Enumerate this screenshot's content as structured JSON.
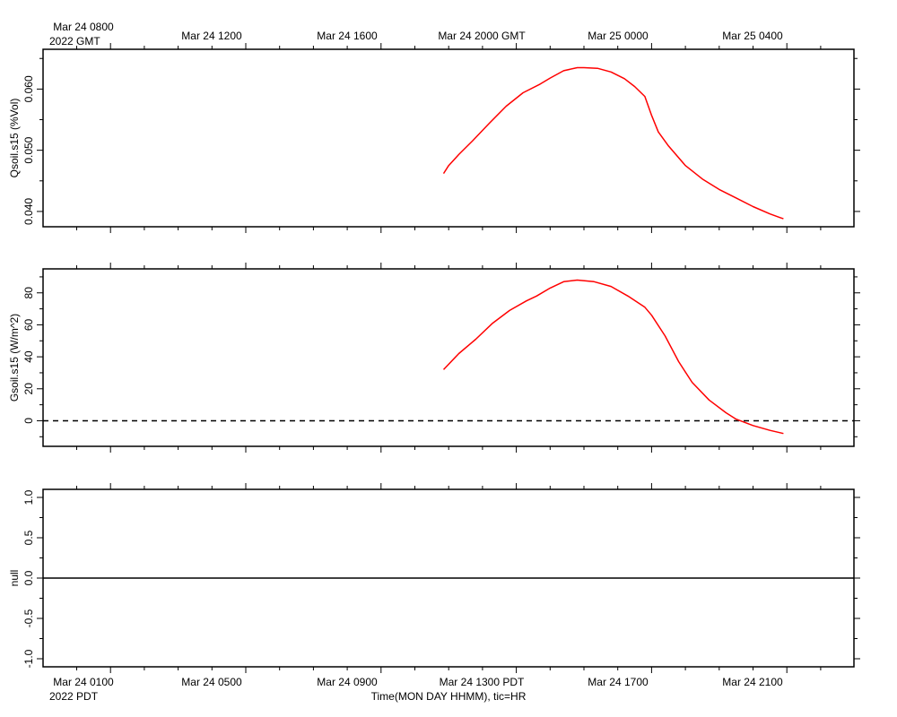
{
  "top_axis": {
    "first_label": "Mar 24 0800",
    "year_label": "2022 GMT",
    "labels": [
      "Mar 24 1200",
      "Mar 24 1600",
      "Mar 24 2000 GMT",
      "Mar 25 0000",
      "Mar 25 0400"
    ]
  },
  "bottom_axis": {
    "labels": [
      "Mar 24 0100",
      "Mar 24 0500",
      "Mar 24 0900",
      "Mar 24 1300 PDT",
      "Mar 24 1700",
      "Mar 24 2100"
    ],
    "year_label": "2022 PDT",
    "title": "Time(MON DAY HHMM), tic=HR"
  },
  "chart_data": [
    {
      "type": "line",
      "ylabel": "Qsoil.s15 (%Vol)",
      "ylim": [
        0.0375,
        0.0665
      ],
      "yticks": [
        0.04,
        0.05,
        0.06
      ],
      "ytick_labels": [
        "0.040",
        "0.050",
        "0.060"
      ],
      "x_unit": "hours after Mar 24 0000 PDT",
      "xlim": [
        0.0,
        24.0
      ],
      "series": [
        {
          "color": "#ff0000",
          "x": [
            10.85,
            11.0,
            11.3,
            11.7,
            12.2,
            12.7,
            13.2,
            13.7,
            14.0,
            14.4,
            14.8,
            15.0,
            15.4,
            15.8,
            16.2,
            16.5,
            16.8,
            17.0,
            17.2,
            17.5,
            18.0,
            18.5,
            19.0,
            19.5,
            20.0,
            20.5,
            20.8,
            20.9
          ],
          "y": [
            0.0462,
            0.0475,
            0.0493,
            0.0515,
            0.0544,
            0.0572,
            0.0594,
            0.0608,
            0.0618,
            0.063,
            0.0635,
            0.0635,
            0.0634,
            0.0628,
            0.0617,
            0.0604,
            0.0588,
            0.0557,
            0.053,
            0.0507,
            0.0475,
            0.0453,
            0.0436,
            0.0422,
            0.0408,
            0.0396,
            0.039,
            0.0388
          ]
        }
      ]
    },
    {
      "type": "line",
      "ylabel": "Gsoil.s15 (W/m^2)",
      "ylim": [
        -16,
        95
      ],
      "yticks": [
        0,
        20,
        40,
        60,
        80
      ],
      "ytick_labels": [
        "0",
        "20",
        "40",
        "60",
        "80"
      ],
      "x_unit": "hours after Mar 24 0000 PDT",
      "xlim": [
        0.0,
        24.0
      ],
      "series": [
        {
          "color": "#ff0000",
          "x": [
            10.85,
            11.3,
            11.8,
            12.3,
            12.8,
            13.3,
            13.6,
            14.0,
            14.4,
            14.8,
            15.3,
            15.8,
            16.3,
            16.8,
            17.0,
            17.4,
            17.8,
            18.2,
            18.7,
            19.2,
            19.5,
            20.0,
            20.5,
            20.9
          ],
          "y": [
            32,
            42,
            51,
            61,
            69,
            75,
            78,
            83,
            87,
            88,
            87,
            84,
            78,
            71,
            66,
            53,
            37,
            24,
            13,
            5,
            1,
            -3,
            -6,
            -8
          ]
        }
      ],
      "reference_line": {
        "y": 0,
        "style": "dashed"
      }
    },
    {
      "type": "line",
      "ylabel": "null",
      "ylim": [
        -1.1,
        1.1
      ],
      "yticks": [
        -1.0,
        -0.5,
        0.0,
        0.5,
        1.0
      ],
      "ytick_labels": [
        "-1.0",
        "-0.5",
        "0.0",
        "0.5",
        "1.0"
      ],
      "x_unit": "hours after Mar 24 0000 PDT",
      "xlim": [
        0.0,
        24.0
      ],
      "series": [],
      "reference_line": {
        "y": 0,
        "style": "solid"
      }
    }
  ],
  "colors": {
    "series": "#ff0000",
    "axes": "#000000",
    "background": "#ffffff"
  }
}
